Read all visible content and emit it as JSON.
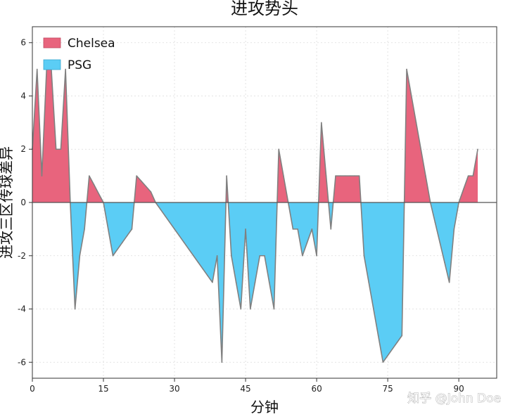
{
  "chart_data": {
    "type": "area",
    "title": "进攻势头",
    "xlabel": "分钟",
    "ylabel": "进攻三区传球差异",
    "xlim": [
      0,
      98
    ],
    "ylim": [
      -6.6,
      6.6
    ],
    "xticks": [
      0,
      15,
      30,
      45,
      60,
      75,
      90
    ],
    "yticks": [
      -6,
      -4,
      -2,
      0,
      2,
      4,
      6
    ],
    "grid": true,
    "legend_position": "top-left",
    "x": [
      0,
      1,
      2,
      3,
      4,
      5,
      6,
      7,
      8,
      9,
      10,
      11,
      12,
      13,
      14,
      15,
      16,
      17,
      18,
      19,
      20,
      21,
      22,
      23,
      24,
      25,
      26,
      27,
      28,
      29,
      30,
      31,
      32,
      33,
      34,
      35,
      36,
      37,
      38,
      39,
      40,
      41,
      42,
      43,
      44,
      45,
      46,
      47,
      48,
      49,
      50,
      51,
      52,
      53,
      54,
      55,
      56,
      57,
      58,
      59,
      60,
      61,
      62,
      63,
      64,
      65,
      66,
      67,
      68,
      69,
      70,
      71,
      72,
      73,
      74,
      75,
      76,
      77,
      78,
      79,
      80,
      81,
      82,
      83,
      84,
      85,
      86,
      87,
      88,
      89,
      90,
      91,
      92,
      93,
      94
    ],
    "values": [
      2,
      5,
      1,
      5,
      5,
      2,
      2,
      5,
      0,
      -4,
      -2,
      -1,
      1,
      0.67,
      0.33,
      0,
      -1,
      -2,
      -1.75,
      -1.5,
      -1.25,
      -1,
      1,
      0.8,
      0.6,
      0.4,
      0,
      -0.25,
      -0.5,
      -0.75,
      -1,
      -1.25,
      -1.5,
      -1.75,
      -2,
      -2.25,
      -2.5,
      -2.75,
      -3,
      -2,
      -6,
      1,
      -2,
      -3,
      -4,
      -1,
      -4,
      -3,
      -2,
      -2,
      -3,
      -4,
      2,
      1,
      0,
      -1,
      -1,
      -2,
      -1.5,
      -1,
      -2,
      3,
      1,
      -1,
      1,
      1,
      1,
      1,
      1,
      1,
      -2,
      -3,
      -4,
      -5,
      -6,
      -5.75,
      -5.5,
      -5.25,
      -5,
      5,
      4,
      3,
      2,
      1,
      0,
      -0.75,
      -1.5,
      -2.25,
      -3,
      -1,
      0,
      0.5,
      1,
      1,
      2
    ],
    "series": [
      {
        "name": "Chelsea",
        "color": "#e8647d"
      },
      {
        "name": "PSG",
        "color": "#5bcdf5"
      }
    ],
    "line_color": "#808080"
  },
  "watermark": "知乎 @John Doe"
}
